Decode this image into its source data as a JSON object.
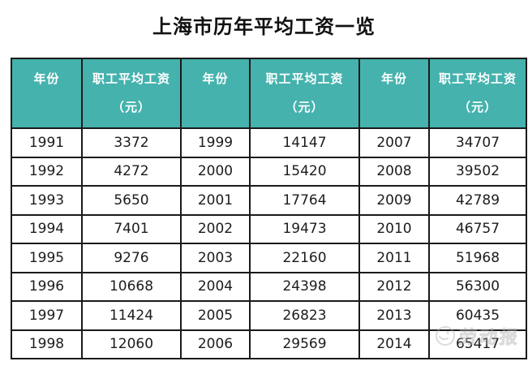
{
  "title": "上海市历年平均工资一览",
  "colors": {
    "header_bg": "#45b2ad",
    "header_text": "#ffffff",
    "border": "#1a1a1a",
    "cell_text": "#1c1c1c",
    "watermark": "#b0b0b0"
  },
  "table": {
    "header_year": "年份",
    "header_wage_line1": "职工平均工资",
    "header_wage_line2": "（元）",
    "rows": [
      [
        "1991",
        "3372",
        "1999",
        "14147",
        "2007",
        "34707"
      ],
      [
        "1992",
        "4272",
        "2000",
        "15420",
        "2008",
        "39502"
      ],
      [
        "1993",
        "5650",
        "2001",
        "17764",
        "2009",
        "42789"
      ],
      [
        "1994",
        "7401",
        "2002",
        "19473",
        "2010",
        "46757"
      ],
      [
        "1995",
        "9276",
        "2003",
        "22160",
        "2011",
        "51968"
      ],
      [
        "1996",
        "10668",
        "2004",
        "24398",
        "2012",
        "56300"
      ],
      [
        "1997",
        "11424",
        "2005",
        "26823",
        "2013",
        "60435"
      ],
      [
        "1998",
        "12060",
        "2006",
        "29569",
        "2014",
        "65417"
      ]
    ]
  },
  "watermark": {
    "text": "劳动报"
  },
  "chart_data": {
    "type": "table",
    "title": "上海市历年平均工资一览",
    "columns": [
      "年份",
      "职工平均工资（元）",
      "年份",
      "职工平均工资（元）",
      "年份",
      "职工平均工资（元）"
    ],
    "years": [
      1991,
      1992,
      1993,
      1994,
      1995,
      1996,
      1997,
      1998,
      1999,
      2000,
      2001,
      2002,
      2003,
      2004,
      2005,
      2006,
      2007,
      2008,
      2009,
      2010,
      2011,
      2012,
      2013,
      2014
    ],
    "wages": [
      3372,
      4272,
      5650,
      7401,
      9276,
      10668,
      11424,
      12060,
      14147,
      15420,
      17764,
      19473,
      22160,
      24398,
      26823,
      29569,
      34707,
      39502,
      42789,
      46757,
      51968,
      56300,
      60435,
      65417
    ]
  }
}
